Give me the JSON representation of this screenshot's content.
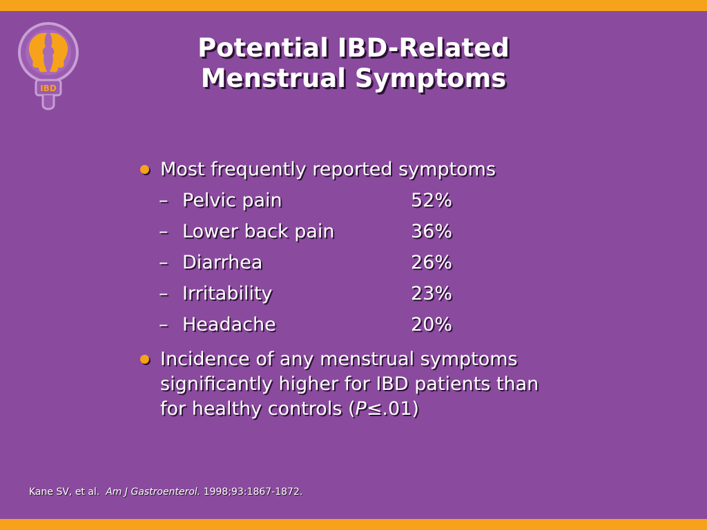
{
  "title": {
    "line1": "Potential IBD-Related",
    "line2": "Menstrual Symptoms"
  },
  "logo": {
    "text": "IBD",
    "icon": "female-symbol-faces-icon"
  },
  "bullets": [
    {
      "text": "Most frequently reported symptoms",
      "items": [
        {
          "label": "Pelvic pain",
          "value": "52%"
        },
        {
          "label": "Lower back pain",
          "value": "36%"
        },
        {
          "label": "Diarrhea",
          "value": "26%"
        },
        {
          "label": "Irritability",
          "value": "23%"
        },
        {
          "label": "Headache",
          "value": "20%"
        }
      ]
    },
    {
      "lines": [
        "Incidence of any menstrual symptoms",
        "significantly higher for IBD patients than"
      ],
      "line3_prefix": "for healthy controls (",
      "line3_italic": "P",
      "line3_suffix": "≤.01)"
    }
  ],
  "citation": {
    "authors": "Kane SV, et al.",
    "journal": "Am J Gastroenterol.",
    "details": "1998;93:1867-1872."
  },
  "colors": {
    "background": "#8a4a9e",
    "border": "#f7a21b",
    "text": "#ffffff",
    "bullet": "#f7a21b"
  }
}
